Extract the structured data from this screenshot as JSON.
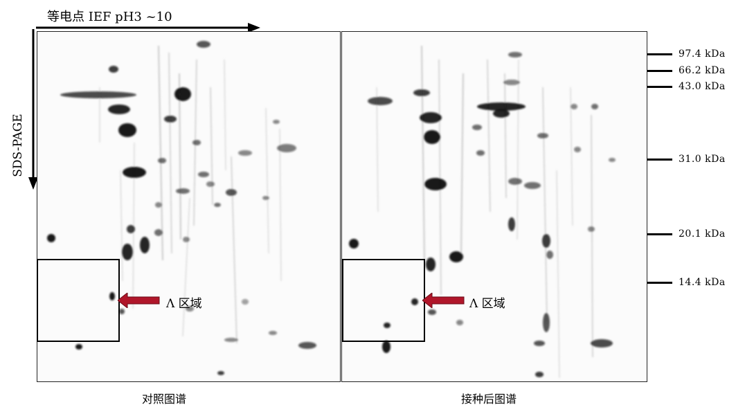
{
  "axes": {
    "ief_label": "等电点 IEF pH3 ~10",
    "sds_label": "SDS-PAGE"
  },
  "gels": [
    {
      "caption": "对照图谱",
      "region_label": "Λ 区域"
    },
    {
      "caption": "接种后图谱",
      "region_label": "Λ 区域"
    }
  ],
  "markers": [
    "97.4 kDa",
    "66.2 kDa",
    "43.0 kDa",
    "31.0 kDa",
    "20.1 kDa",
    "14.4 kDa"
  ],
  "colors": {
    "arrow": "#b0162a",
    "spot": "#111111",
    "streak": "#9a9a9a"
  }
}
